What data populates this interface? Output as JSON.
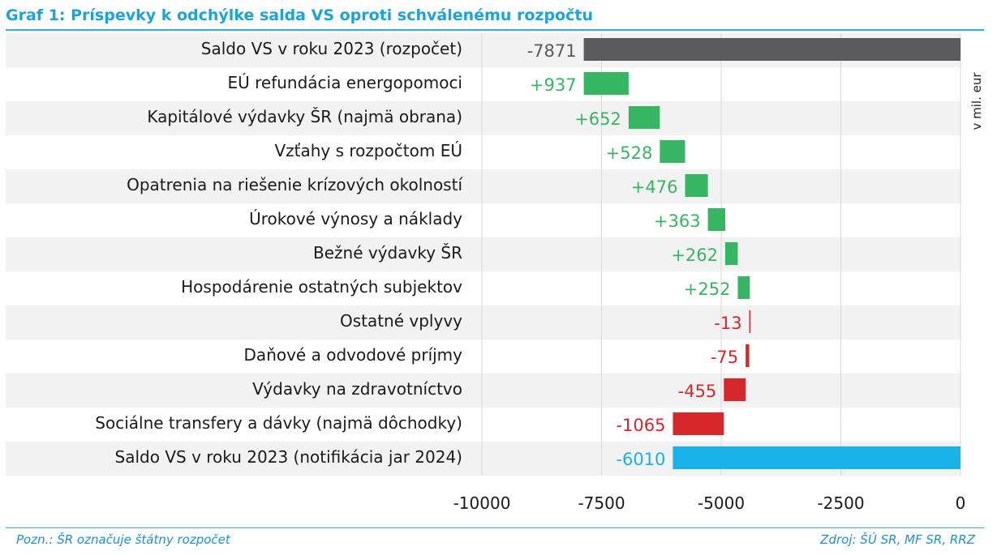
{
  "title": "Graf 1: Príspevky k odchýlke salda VS oproti schválenému rozpočtu",
  "unit_label": "v mil. eur",
  "note": "Pozn.: ŠR označuje štátny rozpočet",
  "source": "Zdroj: ŠÚ SR, MF SR, RRZ",
  "colors": {
    "start": "#5a5a5c",
    "increase": "#36b563",
    "decrease": "#d6282b",
    "end": "#18b2ea",
    "band": "#f2f2f2",
    "grid": "#d8d8d8"
  },
  "chart_data": {
    "type": "bar",
    "subtype": "waterfall",
    "orientation": "horizontal",
    "categories": [
      "Saldo VS v roku 2023 (rozpočet)",
      "EÚ refundácia energopomoci",
      "Kapitálové výdavky ŠR (najmä obrana)",
      "Vzťahy s rozpočtom EÚ",
      "Opatrenia na riešenie krízových okolností",
      "Úrokové výnosy a náklady",
      "Bežné výdavky ŠR",
      "Hospodárenie ostatných subjektov",
      "Ostatné vplyvy",
      "Daňové a odvodové príjmy",
      "Výdavky na zdravotníctvo",
      "Sociálne transfery a dávky (najmä dôchodky)",
      "Saldo VS v roku 2023 (notifikácia jar 2024)"
    ],
    "values": [
      -7871,
      937,
      652,
      528,
      476,
      363,
      262,
      252,
      -13,
      -75,
      -455,
      -1065,
      -6010
    ],
    "data_labels": [
      "-7871",
      "+937",
      "+652",
      "+528",
      "+476",
      "+363",
      "+262",
      "+252",
      "-13",
      "-75",
      "-455",
      "-1065",
      "-6010"
    ],
    "kinds": [
      "start",
      "increase",
      "increase",
      "increase",
      "increase",
      "increase",
      "increase",
      "increase",
      "decrease",
      "decrease",
      "decrease",
      "decrease",
      "end"
    ],
    "xlim": [
      -10000,
      0
    ],
    "xticks": [
      -10000,
      -7500,
      -5000,
      -2500,
      0
    ],
    "xtick_labels": [
      "-10000",
      "-7500",
      "-5000",
      "-2500",
      "0"
    ],
    "grid": true,
    "alternating_row_bands": true
  }
}
